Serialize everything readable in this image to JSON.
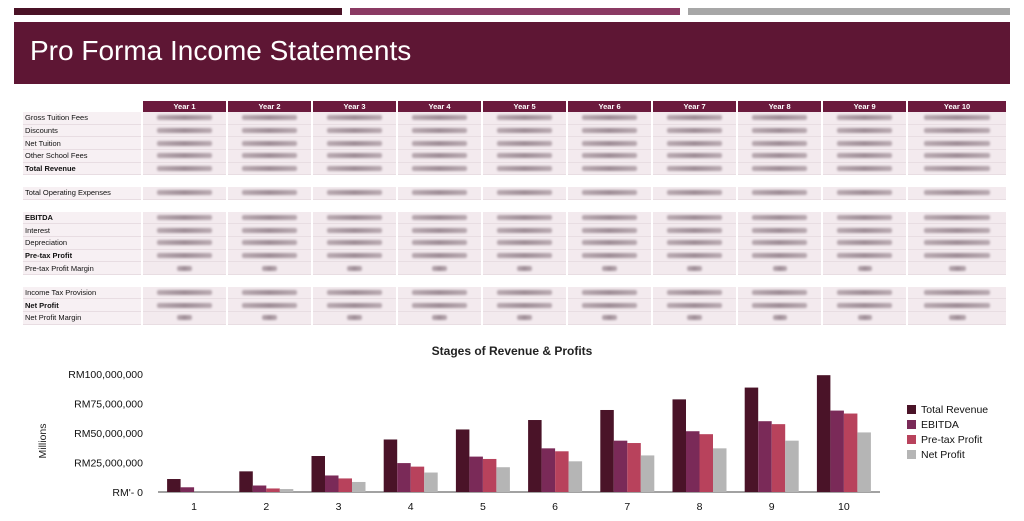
{
  "header": {
    "title": "Pro Forma Income Statements"
  },
  "table": {
    "columns": [
      "Year 1",
      "Year 2",
      "Year 3",
      "Year 4",
      "Year 5",
      "Year 6",
      "Year 7",
      "Year 8",
      "Year 9",
      "Year 10"
    ],
    "rows": [
      {
        "label": "Gross Tuition Fees",
        "bold": false,
        "kind": "value"
      },
      {
        "label": "Discounts",
        "bold": false,
        "kind": "value"
      },
      {
        "label": "Net Tuition",
        "bold": false,
        "kind": "value"
      },
      {
        "label": "Other School Fees",
        "bold": false,
        "kind": "value"
      },
      {
        "label": "Total Revenue",
        "bold": true,
        "kind": "value"
      },
      {
        "label": "",
        "bold": false,
        "kind": "blank"
      },
      {
        "label": "Total Operating Expenses",
        "bold": false,
        "kind": "value"
      },
      {
        "label": "",
        "bold": false,
        "kind": "blank"
      },
      {
        "label": "EBITDA",
        "bold": true,
        "kind": "value"
      },
      {
        "label": "Interest",
        "bold": false,
        "kind": "value"
      },
      {
        "label": "Depreciation",
        "bold": false,
        "kind": "value"
      },
      {
        "label": "Pre-tax Profit",
        "bold": true,
        "kind": "value"
      },
      {
        "label": "Pre-tax Profit Margin",
        "bold": false,
        "kind": "pct"
      },
      {
        "label": "",
        "bold": false,
        "kind": "blank"
      },
      {
        "label": "Income Tax Provision",
        "bold": false,
        "kind": "value"
      },
      {
        "label": "Net Profit",
        "bold": true,
        "kind": "value"
      },
      {
        "label": "Net Profit Margin",
        "bold": false,
        "kind": "pct"
      }
    ]
  },
  "colors": {
    "total_revenue": "#4a1328",
    "ebitda": "#7a2a58",
    "pretax": "#b8425c",
    "net": "#b5b5b5"
  },
  "chart_data": {
    "type": "bar",
    "title": "Stages of Revenue & Profits",
    "ylabel": "Millions",
    "xlabel": "",
    "ylim": [
      0,
      100000000
    ],
    "yticks": [
      0,
      25000000,
      50000000,
      75000000,
      100000000
    ],
    "ytick_labels": [
      "RM'- 0",
      "RM25,000,000",
      "RM50,000,000",
      "RM75,000,000",
      "RM100,000,000"
    ],
    "categories": [
      "1",
      "2",
      "3",
      "4",
      "5",
      "6",
      "7",
      "8",
      "9",
      "10"
    ],
    "legend_position": "right",
    "series": [
      {
        "name": "Total Revenue",
        "color_key": "total_revenue",
        "values": [
          11000000,
          17500000,
          30500000,
          44500000,
          53000000,
          61000000,
          69500000,
          78500000,
          88500000,
          99000000
        ]
      },
      {
        "name": "EBITDA",
        "color_key": "ebitda",
        "values": [
          4000000,
          5500000,
          14000000,
          24500000,
          30000000,
          37000000,
          43500000,
          51500000,
          60000000,
          69000000
        ]
      },
      {
        "name": "Pre-tax Profit",
        "color_key": "pretax",
        "values": [
          0,
          3000000,
          11500000,
          21500000,
          28000000,
          34500000,
          41500000,
          49000000,
          57500000,
          66500000
        ]
      },
      {
        "name": "Net Profit",
        "color_key": "net",
        "values": [
          0,
          2500000,
          8500000,
          16500000,
          21000000,
          26000000,
          31000000,
          37000000,
          43500000,
          50500000
        ]
      }
    ]
  }
}
